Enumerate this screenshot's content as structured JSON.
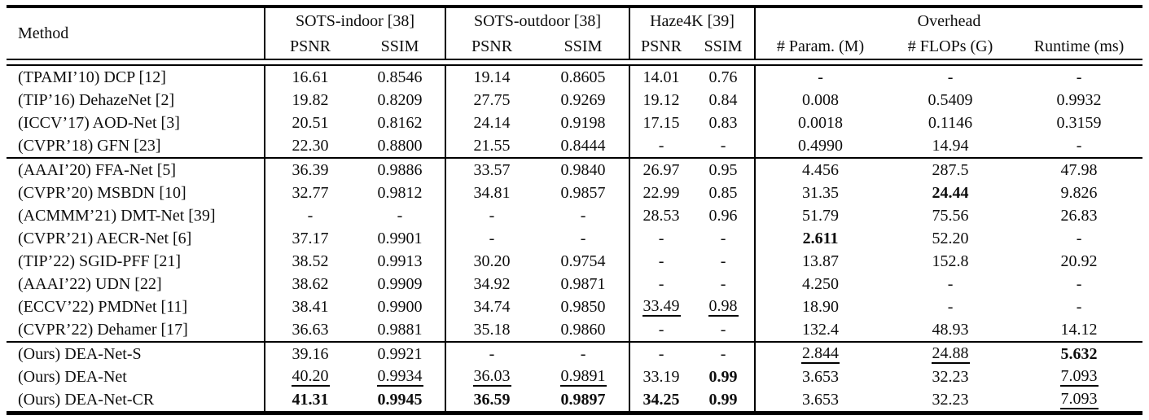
{
  "table": {
    "header": {
      "method": "Method",
      "groups": [
        {
          "label": "SOTS-indoor [38]",
          "cols": [
            "PSNR",
            "SSIM"
          ]
        },
        {
          "label": "SOTS-outdoor [38]",
          "cols": [
            "PSNR",
            "SSIM"
          ]
        },
        {
          "label": "Haze4K [39]",
          "cols": [
            "PSNR",
            "SSIM"
          ]
        },
        {
          "label": "Overhead",
          "cols": [
            "# Param. (M)",
            "# FLOPs (G)",
            "Runtime (ms)"
          ]
        }
      ]
    },
    "style_codes": {
      "b": "bold",
      "u": "underline",
      "": "plain"
    },
    "groups": [
      {
        "rows": [
          {
            "method": "(TPAMI’10) DCP [12]",
            "cells": [
              [
                "16.61",
                ""
              ],
              [
                "0.8546",
                ""
              ],
              [
                "19.14",
                ""
              ],
              [
                "0.8605",
                ""
              ],
              [
                "14.01",
                ""
              ],
              [
                "0.76",
                ""
              ],
              [
                "-",
                ""
              ],
              [
                "-",
                ""
              ],
              [
                "-",
                ""
              ]
            ]
          },
          {
            "method": "(TIP’16) DehazeNet [2]",
            "cells": [
              [
                "19.82",
                ""
              ],
              [
                "0.8209",
                ""
              ],
              [
                "27.75",
                ""
              ],
              [
                "0.9269",
                ""
              ],
              [
                "19.12",
                ""
              ],
              [
                "0.84",
                ""
              ],
              [
                "0.008",
                ""
              ],
              [
                "0.5409",
                ""
              ],
              [
                "0.9932",
                ""
              ]
            ]
          },
          {
            "method": "(ICCV’17) AOD-Net [3]",
            "cells": [
              [
                "20.51",
                ""
              ],
              [
                "0.8162",
                ""
              ],
              [
                "24.14",
                ""
              ],
              [
                "0.9198",
                ""
              ],
              [
                "17.15",
                ""
              ],
              [
                "0.83",
                ""
              ],
              [
                "0.0018",
                ""
              ],
              [
                "0.1146",
                ""
              ],
              [
                "0.3159",
                ""
              ]
            ]
          },
          {
            "method": "(CVPR’18) GFN [23]",
            "cells": [
              [
                "22.30",
                ""
              ],
              [
                "0.8800",
                ""
              ],
              [
                "21.55",
                ""
              ],
              [
                "0.8444",
                ""
              ],
              [
                "-",
                ""
              ],
              [
                "-",
                ""
              ],
              [
                "0.4990",
                ""
              ],
              [
                "14.94",
                ""
              ],
              [
                "-",
                ""
              ]
            ]
          }
        ]
      },
      {
        "rows": [
          {
            "method": "(AAAI’20) FFA-Net [5]",
            "cells": [
              [
                "36.39",
                ""
              ],
              [
                "0.9886",
                ""
              ],
              [
                "33.57",
                ""
              ],
              [
                "0.9840",
                ""
              ],
              [
                "26.97",
                ""
              ],
              [
                "0.95",
                ""
              ],
              [
                "4.456",
                ""
              ],
              [
                "287.5",
                ""
              ],
              [
                "47.98",
                ""
              ]
            ]
          },
          {
            "method": "(CVPR’20) MSBDN [10]",
            "cells": [
              [
                "32.77",
                ""
              ],
              [
                "0.9812",
                ""
              ],
              [
                "34.81",
                ""
              ],
              [
                "0.9857",
                ""
              ],
              [
                "22.99",
                ""
              ],
              [
                "0.85",
                ""
              ],
              [
                "31.35",
                ""
              ],
              [
                "24.44",
                "b"
              ],
              [
                "9.826",
                ""
              ]
            ]
          },
          {
            "method": "(ACMMM’21) DMT-Net [39]",
            "cells": [
              [
                "-",
                ""
              ],
              [
                "-",
                ""
              ],
              [
                "-",
                ""
              ],
              [
                "-",
                ""
              ],
              [
                "28.53",
                ""
              ],
              [
                "0.96",
                ""
              ],
              [
                "51.79",
                ""
              ],
              [
                "75.56",
                ""
              ],
              [
                "26.83",
                ""
              ]
            ]
          },
          {
            "method": "(CVPR’21) AECR-Net [6]",
            "cells": [
              [
                "37.17",
                ""
              ],
              [
                "0.9901",
                ""
              ],
              [
                "-",
                ""
              ],
              [
                "-",
                ""
              ],
              [
                "-",
                ""
              ],
              [
                "-",
                ""
              ],
              [
                "2.611",
                "b"
              ],
              [
                "52.20",
                ""
              ],
              [
                "-",
                ""
              ]
            ]
          },
          {
            "method": "(TIP’22) SGID-PFF [21]",
            "cells": [
              [
                "38.52",
                ""
              ],
              [
                "0.9913",
                ""
              ],
              [
                "30.20",
                ""
              ],
              [
                "0.9754",
                ""
              ],
              [
                "-",
                ""
              ],
              [
                "-",
                ""
              ],
              [
                "13.87",
                ""
              ],
              [
                "152.8",
                ""
              ],
              [
                "20.92",
                ""
              ]
            ]
          },
          {
            "method": "(AAAI’22) UDN [22]",
            "cells": [
              [
                "38.62",
                ""
              ],
              [
                "0.9909",
                ""
              ],
              [
                "34.92",
                ""
              ],
              [
                "0.9871",
                ""
              ],
              [
                "-",
                ""
              ],
              [
                "-",
                ""
              ],
              [
                "4.250",
                ""
              ],
              [
                "-",
                ""
              ],
              [
                "-",
                ""
              ]
            ]
          },
          {
            "method": "(ECCV’22) PMDNet [11]",
            "cells": [
              [
                "38.41",
                ""
              ],
              [
                "0.9900",
                ""
              ],
              [
                "34.74",
                ""
              ],
              [
                "0.9850",
                ""
              ],
              [
                "33.49",
                "u"
              ],
              [
                "0.98",
                "u"
              ],
              [
                "18.90",
                ""
              ],
              [
                "-",
                ""
              ],
              [
                "-",
                ""
              ]
            ]
          },
          {
            "method": "(CVPR’22) Dehamer [17]",
            "cells": [
              [
                "36.63",
                ""
              ],
              [
                "0.9881",
                ""
              ],
              [
                "35.18",
                ""
              ],
              [
                "0.9860",
                ""
              ],
              [
                "-",
                ""
              ],
              [
                "-",
                ""
              ],
              [
                "132.4",
                ""
              ],
              [
                "48.93",
                ""
              ],
              [
                "14.12",
                ""
              ]
            ]
          }
        ]
      },
      {
        "rows": [
          {
            "method": "(Ours) DEA-Net-S",
            "cells": [
              [
                "39.16",
                ""
              ],
              [
                "0.9921",
                ""
              ],
              [
                "-",
                ""
              ],
              [
                "-",
                ""
              ],
              [
                "-",
                ""
              ],
              [
                "-",
                ""
              ],
              [
                "2.844",
                "u"
              ],
              [
                "24.88",
                "u"
              ],
              [
                "5.632",
                "b"
              ]
            ]
          },
          {
            "method": "(Ours) DEA-Net",
            "cells": [
              [
                "40.20",
                "u"
              ],
              [
                "0.9934",
                "u"
              ],
              [
                "36.03",
                "u"
              ],
              [
                "0.9891",
                "u"
              ],
              [
                "33.19",
                ""
              ],
              [
                "0.99",
                "b"
              ],
              [
                "3.653",
                ""
              ],
              [
                "32.23",
                ""
              ],
              [
                "7.093",
                "u"
              ]
            ]
          },
          {
            "method": "(Ours) DEA-Net-CR",
            "cells": [
              [
                "41.31",
                "b"
              ],
              [
                "0.9945",
                "b"
              ],
              [
                "36.59",
                "b"
              ],
              [
                "0.9897",
                "b"
              ],
              [
                "34.25",
                "b"
              ],
              [
                "0.99",
                "b"
              ],
              [
                "3.653",
                ""
              ],
              [
                "32.23",
                ""
              ],
              [
                "7.093",
                "u"
              ]
            ]
          }
        ]
      }
    ]
  }
}
